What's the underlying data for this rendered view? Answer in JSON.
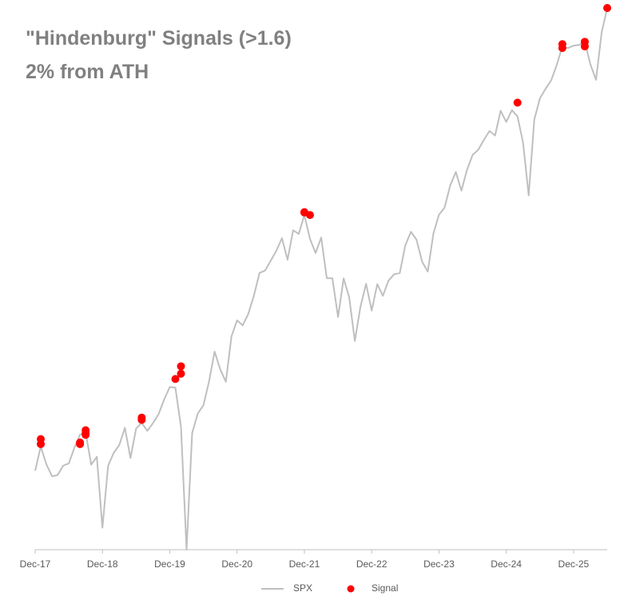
{
  "chart_data": {
    "type": "line",
    "title": "\"Hindenburg\" Signals (>1.6)",
    "subtitle": "2% from ATH",
    "yscale": "log",
    "ylim": [
      2237,
      7610
    ],
    "xlim": [
      "2017-12",
      "2026-06"
    ],
    "xticks": [
      {
        "value": "2017-12",
        "label": "Dec-17"
      },
      {
        "value": "2018-12",
        "label": "Dec-18"
      },
      {
        "value": "2019-12",
        "label": "Dec-19"
      },
      {
        "value": "2020-12",
        "label": "Dec-20"
      },
      {
        "value": "2021-12",
        "label": "Dec-21"
      },
      {
        "value": "2022-12",
        "label": "Dec-22"
      },
      {
        "value": "2023-12",
        "label": "Dec-23"
      },
      {
        "value": "2024-12",
        "label": "Dec-24"
      },
      {
        "value": "2025-12",
        "label": "Dec-25"
      }
    ],
    "grid": false,
    "legend": "bottom",
    "series": [
      {
        "name": "SPX",
        "type": "line",
        "color": "#bfbfbf",
        "x": [
          "2017-12",
          "2018-01",
          "2018-02",
          "2018-03",
          "2018-04",
          "2018-05",
          "2018-06",
          "2018-07",
          "2018-08",
          "2018-09",
          "2018-10",
          "2018-11",
          "2018-12",
          "2019-01",
          "2019-02",
          "2019-03",
          "2019-04",
          "2019-05",
          "2019-06",
          "2019-07",
          "2019-08",
          "2019-09",
          "2019-10",
          "2019-11",
          "2019-12",
          "2020-01",
          "2020-02",
          "2020-03",
          "2020-04",
          "2020-05",
          "2020-06",
          "2020-07",
          "2020-08",
          "2020-09",
          "2020-10",
          "2020-11",
          "2020-12",
          "2021-01",
          "2021-02",
          "2021-03",
          "2021-04",
          "2021-05",
          "2021-06",
          "2021-07",
          "2021-08",
          "2021-09",
          "2021-10",
          "2021-11",
          "2021-12",
          "2022-01",
          "2022-02",
          "2022-03",
          "2022-04",
          "2022-05",
          "2022-06",
          "2022-07",
          "2022-08",
          "2022-09",
          "2022-10",
          "2022-11",
          "2022-12",
          "2023-01",
          "2023-02",
          "2023-03",
          "2023-04",
          "2023-05",
          "2023-06",
          "2023-07",
          "2023-08",
          "2023-09",
          "2023-10",
          "2023-11",
          "2023-12",
          "2024-01",
          "2024-02",
          "2024-03",
          "2024-04",
          "2024-05",
          "2024-06",
          "2024-07",
          "2024-08",
          "2024-09",
          "2024-10",
          "2024-11",
          "2024-12",
          "2025-01",
          "2025-02",
          "2025-03",
          "2025-04",
          "2025-05",
          "2025-06",
          "2025-07",
          "2025-08",
          "2025-09",
          "2025-10",
          "2025-11",
          "2025-12",
          "2026-01",
          "2026-02",
          "2026-03",
          "2026-04",
          "2026-05",
          "2026-06"
        ],
        "values": [
          2674,
          2824,
          2714,
          2641,
          2648,
          2705,
          2718,
          2816,
          2902,
          2914,
          2711,
          2760,
          2351,
          2704,
          2784,
          2834,
          2946,
          2752,
          2942,
          2980,
          2926,
          2977,
          3038,
          3141,
          3231,
          3226,
          2954,
          2237,
          2912,
          3044,
          3100,
          3271,
          3500,
          3363,
          3270,
          3622,
          3756,
          3714,
          3811,
          3973,
          4181,
          4204,
          4298,
          4395,
          4523,
          4308,
          4605,
          4567,
          4766,
          4516,
          4374,
          4530,
          4132,
          4132,
          3785,
          4130,
          3955,
          3585,
          3872,
          4080,
          3840,
          4077,
          3970,
          4109,
          4169,
          4180,
          4450,
          4589,
          4508,
          4288,
          4194,
          4568,
          4770,
          4846,
          5096,
          5254,
          5036,
          5278,
          5460,
          5522,
          5648,
          5762,
          5705,
          6032,
          5882,
          6041,
          5955,
          5612,
          4982,
          5912,
          6205,
          6339,
          6460,
          6688,
          6980,
          6950,
          6990,
          7000,
          7050,
          6700,
          6470,
          7200,
          7610
        ]
      },
      {
        "name": "Signal",
        "type": "scatter",
        "color": "#ff0000",
        "x": [
          "2018-01",
          "2018-01",
          "2018-08",
          "2018-08",
          "2018-09",
          "2018-09",
          "2018-09",
          "2019-07",
          "2019-07",
          "2020-01",
          "2020-02",
          "2020-02",
          "2021-12",
          "2021-12",
          "2022-01",
          "2025-02",
          "2025-10",
          "2025-10",
          "2026-02",
          "2026-02",
          "2026-06"
        ],
        "values": [
          2872,
          2840,
          2840,
          2850,
          2900,
          2910,
          2930,
          3000,
          3015,
          3290,
          3330,
          3386,
          4797,
          4793,
          4766,
          6144,
          7013,
          6952,
          7050,
          6977,
          7610
        ]
      }
    ]
  }
}
